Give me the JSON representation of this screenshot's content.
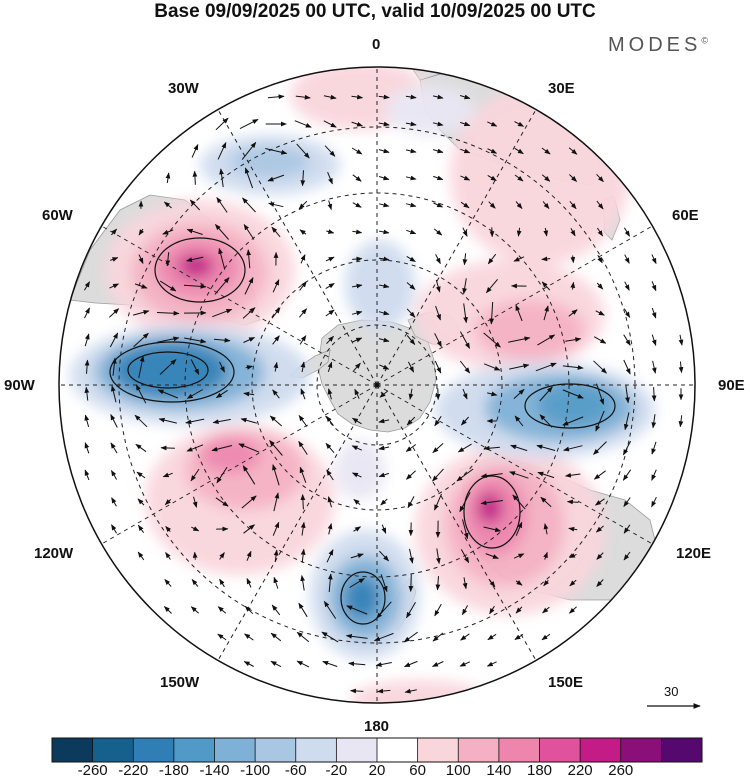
{
  "title": "Base 09/09/2025 00 UTC, valid 10/09/2025 00 UTC",
  "brand": "MODES",
  "brand_mark": "©",
  "lon_labels": {
    "lon_0": "0",
    "lon_30e": "30E",
    "lon_60e": "60E",
    "lon_90e": "90E",
    "lon_120e": "120E",
    "lon_150e": "150E",
    "lon_180": "180",
    "lon_150w": "150W",
    "lon_120w": "120W",
    "lon_90w": "90W",
    "lon_60w": "60W",
    "lon_30w": "30W"
  },
  "reference_vector": "30",
  "colorbar": {
    "ticks": [
      "-260",
      "-220",
      "-180",
      "-140",
      "-100",
      "-60",
      "-20",
      "20",
      "60",
      "100",
      "140",
      "180",
      "220",
      "260"
    ],
    "colors": [
      "#0c3a5c",
      "#16608e",
      "#2f7fb6",
      "#5199c7",
      "#7fb0d6",
      "#a9c6e2",
      "#cfdbee",
      "#e8e6f3",
      "#ffffff",
      "#f9d6dc",
      "#f5b1c3",
      "#ee85ad",
      "#e1529c",
      "#c31c86",
      "#8a0f78",
      "#55096e"
    ]
  },
  "colors": {
    "land": "#dcdcdc",
    "coast": "#555555",
    "graticule": "#222222",
    "vector": "#111111"
  }
}
